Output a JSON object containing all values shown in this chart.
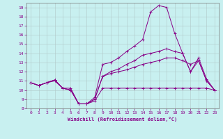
{
  "xlabel": "Windchill (Refroidissement éolien,°C)",
  "ylabel": "",
  "background_color": "#c8f0f0",
  "grid_color": "#aaaaaa",
  "line_color": "#880088",
  "xlim": [
    -0.5,
    23.5
  ],
  "ylim": [
    8,
    19.5
  ],
  "xticks": [
    0,
    1,
    2,
    3,
    4,
    5,
    6,
    7,
    8,
    9,
    10,
    11,
    12,
    13,
    14,
    15,
    16,
    17,
    18,
    19,
    20,
    21,
    22,
    23
  ],
  "yticks": [
    8,
    9,
    10,
    11,
    12,
    13,
    14,
    15,
    16,
    17,
    18,
    19
  ],
  "series": [
    [
      10.8,
      10.5,
      10.8,
      11.0,
      10.2,
      10.2,
      8.5,
      8.5,
      8.8,
      10.2,
      10.2,
      10.2,
      10.2,
      10.2,
      10.2,
      10.2,
      10.2,
      10.2,
      10.2,
      10.2,
      10.2,
      10.2,
      10.2,
      10.0
    ],
    [
      10.8,
      10.5,
      10.8,
      11.1,
      10.2,
      10.0,
      8.5,
      8.5,
      9.0,
      11.5,
      11.8,
      12.0,
      12.2,
      12.5,
      12.8,
      13.0,
      13.2,
      13.5,
      13.5,
      13.2,
      12.8,
      13.2,
      11.0,
      10.0
    ],
    [
      10.8,
      10.5,
      10.8,
      11.1,
      10.2,
      10.0,
      8.5,
      8.5,
      9.0,
      11.5,
      12.0,
      12.3,
      12.8,
      13.2,
      13.8,
      14.0,
      14.2,
      14.5,
      14.2,
      14.0,
      12.0,
      13.2,
      11.0,
      10.0
    ],
    [
      10.8,
      10.5,
      10.8,
      11.1,
      10.2,
      10.0,
      8.5,
      8.5,
      9.2,
      12.8,
      13.0,
      13.5,
      14.2,
      14.8,
      15.5,
      18.5,
      19.2,
      19.0,
      16.2,
      14.0,
      12.0,
      13.5,
      11.2,
      10.0
    ]
  ]
}
